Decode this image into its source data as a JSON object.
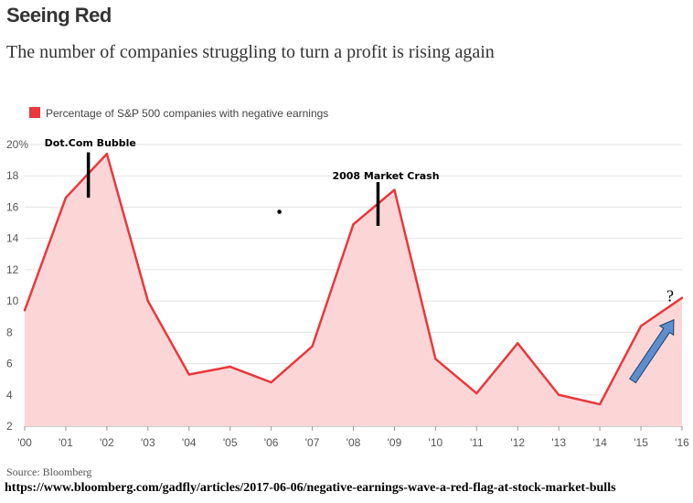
{
  "title": "Seeing Red",
  "subtitle": "The number of companies struggling to turn a profit is rising again",
  "source": "Source: Bloomberg",
  "url": "https://www.bloomberg.com/gadfly/articles/2017-06-06/negative-earnings-wave-a-red-flag-at-stock-market-bulls",
  "colors": {
    "line": "#e8383d",
    "fill": "#fcd6d6",
    "arrow": "#5b8fd0",
    "arrow_stroke": "#1f3d66",
    "grid": "#e3e3e3"
  },
  "chart_data": {
    "type": "area",
    "x": [
      2000,
      2001,
      2002,
      2003,
      2004,
      2005,
      2006,
      2007,
      2008,
      2009,
      2010,
      2011,
      2012,
      2013,
      2014,
      2015,
      2016
    ],
    "series": [
      {
        "name": "Percentage of S&P 500 companies with negative earnings",
        "values": [
          9.4,
          16.6,
          19.4,
          10.0,
          5.3,
          5.8,
          4.8,
          7.1,
          14.9,
          17.1,
          6.3,
          4.1,
          7.3,
          4.0,
          3.4,
          8.4,
          10.2
        ]
      }
    ],
    "x_tick_labels": [
      "'00",
      "'01",
      "'02",
      "'03",
      "'04",
      "'05",
      "'06",
      "'07",
      "'08",
      "'09",
      "'10",
      "'11",
      "'12",
      "'13",
      "'14",
      "'15",
      "'16"
    ],
    "y_ticks": [
      2,
      4,
      6,
      8,
      10,
      12,
      14,
      16,
      18,
      20
    ],
    "y_tick_labels": [
      "2",
      "4",
      "6",
      "8",
      "10",
      "12",
      "14",
      "16",
      "18",
      "20%"
    ],
    "ylim": [
      2,
      20
    ],
    "xlim": [
      2000,
      2016
    ],
    "grid": true,
    "legend_position": "top-left",
    "annotations": [
      {
        "text": "Dot.Com Bubble",
        "x": 2001.55,
        "y": 17.9,
        "marker_from": 16.6,
        "marker_to": 19.5
      },
      {
        "text": "2008 Market Crash",
        "x": 2008.6,
        "y": 16.2,
        "marker_from": 14.8,
        "marker_to": 17.6
      },
      {
        "text": "?",
        "trend_from": [
          2014.8,
          4.9
        ],
        "trend_to": [
          2015.8,
          8.8
        ]
      }
    ],
    "dot": {
      "x": 2006.2,
      "y": 15.7
    }
  }
}
